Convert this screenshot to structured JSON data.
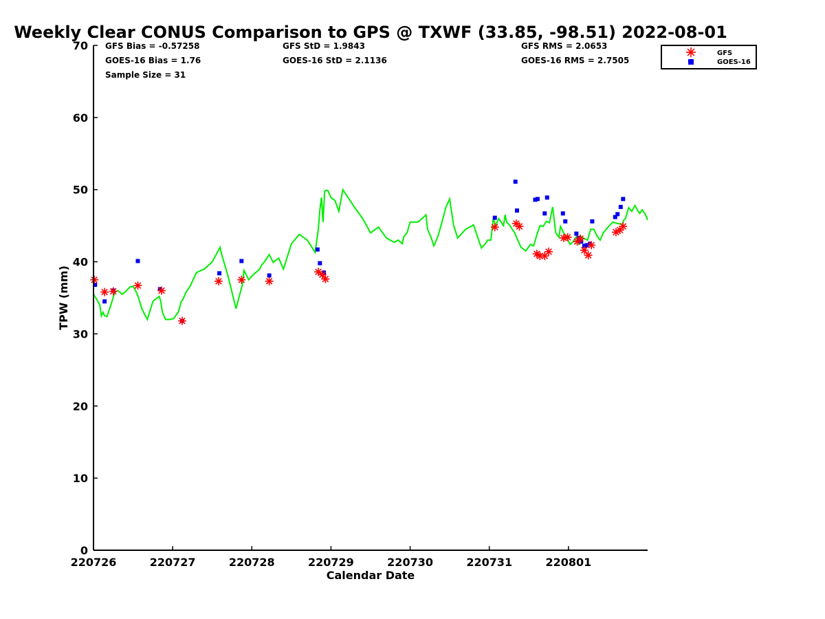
{
  "chart_data": {
    "type": "scatter",
    "title": "Weekly Clear CONUS Comparison to GPS @ TXWF (33.85, -98.51) 2022-08-01",
    "xlabel": "Calendar Date",
    "ylabel": "TPW (mm)",
    "x_unit": "days since 220726 00Z",
    "xlim": [
      0,
      7
    ],
    "ylim": [
      0,
      70
    ],
    "x_tick_values": [
      0,
      1,
      2,
      3,
      4,
      5,
      6
    ],
    "x_tick_labels": [
      "220726",
      "220727",
      "220728",
      "220729",
      "220730",
      "220731",
      "220801"
    ],
    "y_ticks": [
      0,
      10,
      20,
      30,
      40,
      50,
      60,
      70
    ],
    "stats": {
      "gfs_bias": "GFS Bias = -0.57258",
      "goes_bias": "GOES-16 Bias = 1.76",
      "sample_size": "Sample Size = 31",
      "gfs_std": "GFS StD = 1.9843",
      "goes_std": "GOES-16 StD = 2.1136",
      "gfs_rms": "GFS RMS = 2.0653",
      "goes_rms": "GOES-16 RMS = 2.7505"
    },
    "legend": {
      "position": "top-right",
      "entries": [
        "GFS",
        "GOES-16"
      ]
    },
    "colors": {
      "gps": "#00ee00",
      "gfs": "#ff0000",
      "goes": "#0000ee",
      "axis": "#000000"
    },
    "series": [
      {
        "name": "GPS",
        "kind": "line",
        "x": [
          0.0,
          0.04,
          0.08,
          0.1,
          0.12,
          0.14,
          0.17,
          0.22,
          0.27,
          0.31,
          0.36,
          0.4,
          0.46,
          0.5,
          0.54,
          0.57,
          0.61,
          0.68,
          0.75,
          0.83,
          0.85,
          0.87,
          0.91,
          0.96,
          1.01,
          1.07,
          1.11,
          1.13,
          1.17,
          1.22,
          1.3,
          1.4,
          1.5,
          1.6,
          1.62,
          1.7,
          1.8,
          1.88,
          1.9,
          1.92,
          1.96,
          2.0,
          2.05,
          2.1,
          2.12,
          2.16,
          2.22,
          2.27,
          2.34,
          2.4,
          2.5,
          2.6,
          2.7,
          2.8,
          2.84,
          2.86,
          2.88,
          2.9,
          2.92,
          2.94,
          2.96,
          3.0,
          3.05,
          3.1,
          3.15,
          3.3,
          3.4,
          3.5,
          3.6,
          3.7,
          3.8,
          3.85,
          3.9,
          3.92,
          3.96,
          4.0,
          4.1,
          4.2,
          4.22,
          4.26,
          4.3,
          4.35,
          4.4,
          4.45,
          4.5,
          4.55,
          4.6,
          4.7,
          4.8,
          4.9,
          4.95,
          4.98,
          5.02,
          5.05,
          5.08,
          5.12,
          5.18,
          5.2,
          5.22,
          5.26,
          5.32,
          5.4,
          5.46,
          5.52,
          5.56,
          5.6,
          5.64,
          5.68,
          5.72,
          5.76,
          5.8,
          5.84,
          5.88,
          5.9,
          5.94,
          5.98,
          6.02,
          6.06,
          6.1,
          6.13,
          6.16,
          6.2,
          6.24,
          6.28,
          6.32,
          6.36,
          6.4,
          6.44,
          6.5,
          6.56,
          6.62,
          6.68,
          6.7,
          6.72,
          6.76,
          6.8,
          6.84,
          6.88,
          6.9,
          6.93,
          6.97,
          7.0
        ],
        "y": [
          35.5,
          34.8,
          34.0,
          32.5,
          33.0,
          32.5,
          32.4,
          34.0,
          35.8,
          36.0,
          35.5,
          35.8,
          36.5,
          36.6,
          35.8,
          35.0,
          33.5,
          32.0,
          34.5,
          35.2,
          34.5,
          33.0,
          32.0,
          32.0,
          32.1,
          33.0,
          34.5,
          34.8,
          35.8,
          36.6,
          38.5,
          39.0,
          40.0,
          42.0,
          41.0,
          38.0,
          33.5,
          36.8,
          38.8,
          38.4,
          37.5,
          38.0,
          38.5,
          39.0,
          39.5,
          40.0,
          41.0,
          39.9,
          40.5,
          39.0,
          42.5,
          43.8,
          43.0,
          41.3,
          44.5,
          47.2,
          48.9,
          45.5,
          49.8,
          49.9,
          49.9,
          48.9,
          48.5,
          47.0,
          50.0,
          47.5,
          46.0,
          44.0,
          44.8,
          43.3,
          42.7,
          43.0,
          42.5,
          43.5,
          44.0,
          45.5,
          45.5,
          46.5,
          44.5,
          43.5,
          42.2,
          43.5,
          45.4,
          47.5,
          48.7,
          45.0,
          43.3,
          44.5,
          45.1,
          41.9,
          42.5,
          43.0,
          43.0,
          46.0,
          45.0,
          46.0,
          45.0,
          46.5,
          45.5,
          45.0,
          44.0,
          42.0,
          41.5,
          42.4,
          42.2,
          43.7,
          45.0,
          44.9,
          45.6,
          45.4,
          47.6,
          44.0,
          43.4,
          44.9,
          44.0,
          43.3,
          42.4,
          42.8,
          43.5,
          42.5,
          43.5,
          43.2,
          43.0,
          44.5,
          44.5,
          43.6,
          43.0,
          44.0,
          44.8,
          45.5,
          45.3,
          45.2,
          45.8,
          46.0,
          47.5,
          47.0,
          47.8,
          47.0,
          46.7,
          47.2,
          46.6,
          45.8
        ]
      },
      {
        "name": "GFS",
        "kind": "marker",
        "x": [
          0.01,
          0.14,
          0.25,
          0.56,
          0.86,
          1.12,
          1.58,
          1.87,
          2.22,
          2.84,
          2.89,
          2.93,
          5.07,
          5.34,
          5.38,
          5.6,
          5.64,
          5.7,
          5.75,
          5.94,
          5.99,
          6.11,
          6.15,
          6.2,
          6.25,
          6.29,
          6.6,
          6.65,
          6.69
        ],
        "y": [
          37.5,
          35.8,
          35.9,
          36.7,
          36.0,
          31.8,
          37.3,
          37.5,
          37.3,
          38.6,
          38.2,
          37.6,
          44.8,
          45.3,
          44.9,
          41.1,
          40.8,
          40.8,
          41.4,
          43.3,
          43.4,
          42.8,
          43.2,
          41.6,
          40.9,
          42.3,
          44.1,
          44.4,
          44.9
        ]
      },
      {
        "name": "GOES-16",
        "kind": "marker",
        "x": [
          0.02,
          0.14,
          0.25,
          0.56,
          0.84,
          1.12,
          1.59,
          1.87,
          2.22,
          2.83,
          2.86,
          2.91,
          5.07,
          5.33,
          5.35,
          5.58,
          5.61,
          5.7,
          5.73,
          5.93,
          5.96,
          6.1,
          6.13,
          6.16,
          6.2,
          6.23,
          6.27,
          6.3,
          6.59,
          6.62,
          6.66,
          6.69
        ],
        "y": [
          36.8,
          34.5,
          36.0,
          40.1,
          36.2,
          31.8,
          38.4,
          40.1,
          38.1,
          41.7,
          39.8,
          38.5,
          46.1,
          51.1,
          47.1,
          48.6,
          48.7,
          46.7,
          48.9,
          46.7,
          45.6,
          43.9,
          43.3,
          42.8,
          42.2,
          42.3,
          42.5,
          45.6,
          46.2,
          46.6,
          47.6,
          48.7
        ]
      }
    ]
  }
}
